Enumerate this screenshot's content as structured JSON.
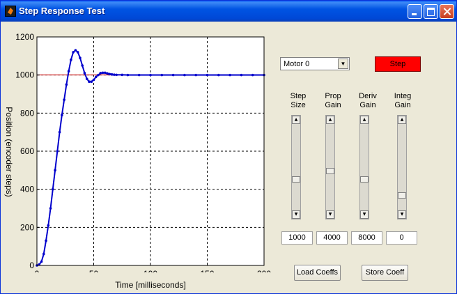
{
  "window": {
    "title": "Step Response Test",
    "accent": "#0054e3"
  },
  "motor_select": {
    "value": "Motor 0"
  },
  "step_button": {
    "label": "Step",
    "color": "#ff0000"
  },
  "sliders": [
    {
      "line1": "Step",
      "line2": "Size",
      "level": 0.35,
      "value": "1000"
    },
    {
      "line1": "Prop",
      "line2": "Gain",
      "level": 0.45,
      "value": "4000"
    },
    {
      "line1": "Deriv",
      "line2": "Gain",
      "level": 0.35,
      "value": "8000"
    },
    {
      "line1": "Integ",
      "line2": "Gain",
      "level": 0.15,
      "value": "0"
    }
  ],
  "buttons": {
    "load": "Load Coeffs",
    "store": "Store Coeff"
  },
  "chart_data": {
    "type": "line",
    "xlabel": "Time [milliseconds]",
    "ylabel": "Position (encoder steps)",
    "xlim": [
      0,
      200
    ],
    "ylim": [
      0,
      1200
    ],
    "xticks": [
      0,
      50,
      100,
      150,
      200
    ],
    "yticks": [
      0,
      200,
      400,
      600,
      800,
      1000,
      1200
    ],
    "grid": true,
    "series": [
      {
        "kind": "setpoint",
        "color": "#cc0000",
        "x": [
          0,
          0,
          200
        ],
        "y": [
          0,
          1000,
          1000
        ]
      },
      {
        "kind": "response",
        "color": "#0000cc",
        "marker": true,
        "x": [
          0,
          2,
          4,
          6,
          8,
          10,
          12,
          14,
          16,
          18,
          20,
          22,
          24,
          26,
          28,
          30,
          32,
          34,
          36,
          38,
          40,
          42,
          44,
          46,
          48,
          50,
          52,
          54,
          56,
          58,
          60,
          62,
          64,
          66,
          68,
          70,
          75,
          80,
          90,
          100,
          110,
          120,
          130,
          140,
          150,
          160,
          170,
          180,
          190,
          200
        ],
        "y": [
          0,
          5,
          20,
          60,
          130,
          210,
          300,
          400,
          500,
          600,
          700,
          790,
          870,
          950,
          1020,
          1080,
          1120,
          1130,
          1120,
          1090,
          1050,
          1010,
          980,
          965,
          965,
          975,
          990,
          1000,
          1010,
          1012,
          1012,
          1008,
          1005,
          1003,
          1002,
          1001,
          1001,
          1000,
          1000,
          1000,
          1000,
          1000,
          1000,
          1000,
          1000,
          1000,
          1000,
          1000,
          1000,
          1000
        ]
      }
    ]
  }
}
